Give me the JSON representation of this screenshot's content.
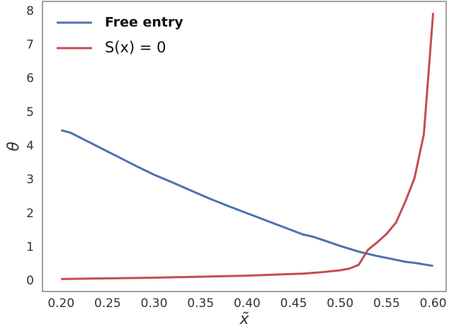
{
  "chart_data": {
    "type": "line",
    "xlabel": "x̃",
    "ylabel": "θ",
    "xlim": [
      0.18,
      0.614
    ],
    "ylim": [
      -0.31,
      8.29
    ],
    "xticks": [
      {
        "value": 0.2,
        "label": "0.20"
      },
      {
        "value": 0.25,
        "label": "0.25"
      },
      {
        "value": 0.3,
        "label": "0.30"
      },
      {
        "value": 0.35,
        "label": "0.35"
      },
      {
        "value": 0.4,
        "label": "0.40"
      },
      {
        "value": 0.45,
        "label": "0.45"
      },
      {
        "value": 0.5,
        "label": "0.50"
      },
      {
        "value": 0.55,
        "label": "0.55"
      },
      {
        "value": 0.6,
        "label": "0.60"
      }
    ],
    "yticks": [
      0,
      1,
      2,
      3,
      4,
      5,
      6,
      7,
      8
    ],
    "legend": "upper left",
    "series": [
      {
        "name": "Free entry",
        "color": "#4c72b0",
        "x": [
          0.2,
          0.21,
          0.22,
          0.24,
          0.26,
          0.28,
          0.3,
          0.32,
          0.34,
          0.36,
          0.38,
          0.4,
          0.42,
          0.44,
          0.46,
          0.47,
          0.48,
          0.5,
          0.52,
          0.54,
          0.56,
          0.57,
          0.58,
          0.6
        ],
        "values": [
          4.47,
          4.4,
          4.26,
          3.98,
          3.7,
          3.42,
          3.15,
          2.92,
          2.68,
          2.44,
          2.22,
          2.01,
          1.8,
          1.59,
          1.38,
          1.32,
          1.23,
          1.04,
          0.87,
          0.74,
          0.63,
          0.57,
          0.54,
          0.45
        ]
      },
      {
        "name": "S(x) = 0",
        "color": "#c44e52",
        "x": [
          0.2,
          0.3,
          0.4,
          0.46,
          0.48,
          0.5,
          0.51,
          0.52,
          0.53,
          0.54,
          0.55,
          0.56,
          0.57,
          0.58,
          0.59,
          0.6
        ],
        "values": [
          0.06,
          0.1,
          0.16,
          0.22,
          0.26,
          0.32,
          0.37,
          0.48,
          0.93,
          1.15,
          1.4,
          1.73,
          2.35,
          3.05,
          4.35,
          7.95
        ]
      }
    ]
  }
}
